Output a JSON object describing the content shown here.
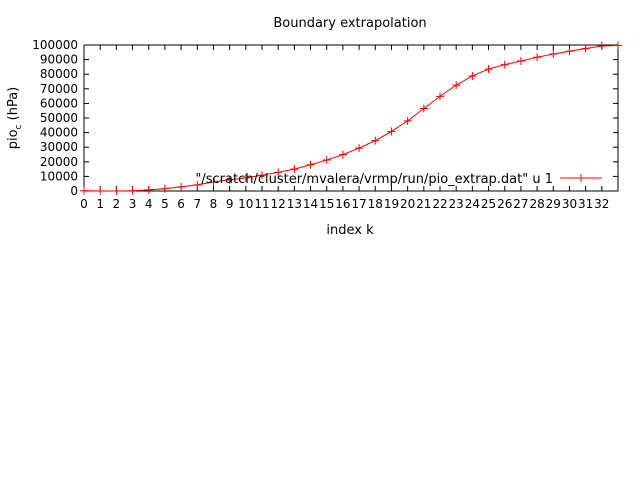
{
  "chart_data": {
    "type": "line",
    "title": "Boundary extrapolation",
    "xlabel": "index k",
    "ylabel_main": "pio",
    "ylabel_sub": "c",
    "ylabel_tail": " (hPa)",
    "xlim": [
      0,
      33
    ],
    "ylim": [
      0,
      100000
    ],
    "x_ticks": [
      0,
      1,
      2,
      3,
      4,
      5,
      6,
      7,
      8,
      9,
      10,
      11,
      12,
      13,
      14,
      15,
      16,
      17,
      18,
      19,
      20,
      21,
      22,
      23,
      24,
      25,
      26,
      27,
      28,
      29,
      30,
      31,
      32
    ],
    "y_ticks": [
      0,
      10000,
      20000,
      30000,
      40000,
      50000,
      60000,
      70000,
      80000,
      90000,
      100000
    ],
    "legend_position": "right, inside plot",
    "grid": false,
    "series": [
      {
        "name": "\"/scratch/cluster/mvalera/vrmp/run/pio_extrap.dat\" u 1",
        "color": "#ff0000",
        "marker": "plus",
        "x": [
          0,
          1,
          2,
          3,
          4,
          5,
          6,
          7,
          8,
          9,
          10,
          11,
          12,
          13,
          14,
          15,
          16,
          17,
          18,
          19,
          20,
          21,
          22,
          23,
          24,
          25,
          26,
          27,
          28,
          29,
          30,
          31,
          32,
          33
        ],
        "values": [
          200,
          0,
          0,
          150,
          800,
          1600,
          2800,
          4200,
          6200,
          7700,
          9000,
          10800,
          12800,
          15000,
          18000,
          21200,
          24900,
          29400,
          34500,
          40800,
          48000,
          56500,
          64800,
          72500,
          78800,
          83500,
          86600,
          89000,
          91600,
          93800,
          95700,
          97600,
          99300,
          99700
        ]
      }
    ]
  }
}
